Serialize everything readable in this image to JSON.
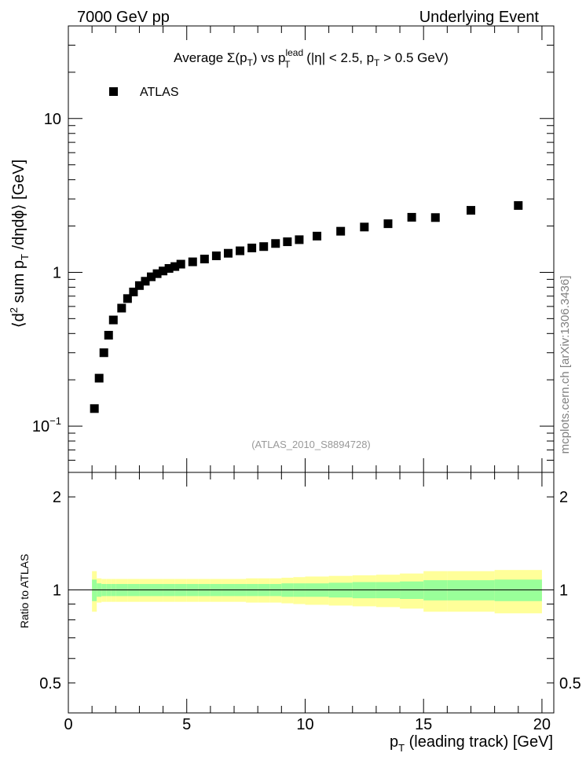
{
  "header": {
    "left": "7000 GeV pp",
    "right": "Underlying Event"
  },
  "title": {
    "prefix": "Average ",
    "sigma": "Σ(p",
    "sub_t1": "T",
    "mid": ") vs p",
    "sup_lead": "lead",
    "sub_t2": "T",
    "cut1": " (|η| < 2.5, p",
    "sub_t3": "T",
    "cut2": " > 0.5 GeV)"
  },
  "legend": {
    "label": "ATLAS"
  },
  "watermark": "(ATLAS_2010_S8894728)",
  "side_label": "mcplots.cern.ch [arXiv:1306.3436]",
  "main_ylabel": {
    "a": "⟨d",
    "sup2": "2",
    "b": " sum p",
    "subT": "T",
    "c": " /dηdϕ⟩ [GeV]"
  },
  "main_yticks": [
    {
      "value": 0.1,
      "label": "10",
      "sup": "−1"
    },
    {
      "value": 1,
      "label": "1",
      "sup": ""
    },
    {
      "value": 10,
      "label": "10",
      "sup": ""
    }
  ],
  "ratio_ylabel": "Ratio to ATLAS",
  "ratio_yticks": [
    {
      "value": 0.5,
      "label": "0.5"
    },
    {
      "value": 1,
      "label": "1"
    },
    {
      "value": 2,
      "label": "2"
    }
  ],
  "xlabel": {
    "a": "p",
    "sub": "T",
    "b": " (leading track) [GeV]"
  },
  "xticks": [
    {
      "value": 0,
      "label": "0"
    },
    {
      "value": 5,
      "label": "5"
    },
    {
      "value": 10,
      "label": "10"
    },
    {
      "value": 15,
      "label": "15"
    },
    {
      "value": 20,
      "label": "20"
    }
  ],
  "colors": {
    "marker": "#000000",
    "band_inner": "#99ff99",
    "band_outer": "#ffff99"
  },
  "chart_data": [
    {
      "type": "scatter",
      "panel": "main",
      "xlim": [
        0,
        20.5
      ],
      "ylim": [
        0.05,
        40
      ],
      "ylog": true,
      "series": [
        {
          "name": "ATLAS",
          "x": [
            1.1,
            1.3,
            1.5,
            1.7,
            1.9,
            2.25,
            2.5,
            2.75,
            3.0,
            3.25,
            3.5,
            3.75,
            4.0,
            4.25,
            4.5,
            4.75,
            5.25,
            5.75,
            6.25,
            6.75,
            7.25,
            7.75,
            8.25,
            8.75,
            9.25,
            9.75,
            10.5,
            11.5,
            12.5,
            13.5,
            14.5,
            15.5,
            17.0,
            19.0
          ],
          "y": [
            0.13,
            0.205,
            0.3,
            0.39,
            0.49,
            0.585,
            0.675,
            0.745,
            0.82,
            0.875,
            0.935,
            0.98,
            1.02,
            1.06,
            1.09,
            1.13,
            1.17,
            1.22,
            1.28,
            1.33,
            1.38,
            1.44,
            1.47,
            1.54,
            1.58,
            1.63,
            1.72,
            1.85,
            1.97,
            2.07,
            2.28,
            2.27,
            2.53,
            2.72
          ]
        }
      ]
    },
    {
      "type": "area",
      "panel": "ratio",
      "xlim": [
        0,
        20.5
      ],
      "ylim": [
        0.4,
        2.4
      ],
      "ylog": true,
      "reference": 1,
      "bands": [
        {
          "x_edges": [
            1.0,
            1.2,
            1.4,
            1.6,
            1.8,
            2.0,
            2.5,
            3.0,
            3.5,
            4.0,
            4.5,
            5.0,
            5.5,
            6.0,
            6.5,
            7.0,
            7.5,
            8.0,
            8.5,
            9.0,
            9.5,
            10.0,
            11.0,
            12.0,
            13.0,
            14.0,
            15.0,
            16.0,
            18.0,
            20.0
          ],
          "inner_half": [
            0.08,
            0.05,
            0.045,
            0.045,
            0.045,
            0.045,
            0.045,
            0.045,
            0.045,
            0.045,
            0.045,
            0.045,
            0.045,
            0.045,
            0.045,
            0.045,
            0.045,
            0.045,
            0.045,
            0.05,
            0.05,
            0.05,
            0.055,
            0.06,
            0.06,
            0.065,
            0.075,
            0.075,
            0.08
          ],
          "outer_half": [
            0.15,
            0.09,
            0.085,
            0.085,
            0.085,
            0.085,
            0.085,
            0.085,
            0.085,
            0.085,
            0.085,
            0.085,
            0.085,
            0.085,
            0.085,
            0.085,
            0.09,
            0.09,
            0.09,
            0.095,
            0.1,
            0.105,
            0.11,
            0.115,
            0.12,
            0.13,
            0.15,
            0.15,
            0.16
          ]
        }
      ]
    }
  ]
}
